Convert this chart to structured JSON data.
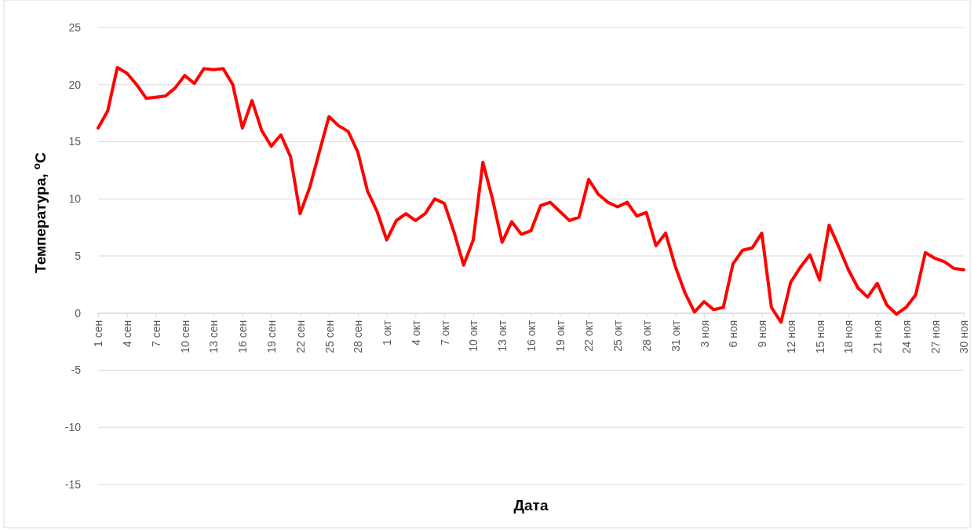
{
  "chart_data": {
    "type": "line",
    "xlabel": "Дата",
    "ylabel": "Температура, $^{o}$C",
    "categories": [
      "1 сен",
      null,
      null,
      "4 сен",
      null,
      null,
      "7 сен",
      null,
      null,
      "10 сен",
      null,
      null,
      "13 сен",
      null,
      null,
      "16 сен",
      null,
      null,
      "19 сен",
      null,
      null,
      "22 сен",
      null,
      null,
      "25 сен",
      null,
      null,
      "28 сен",
      null,
      null,
      "1 окт",
      null,
      null,
      "4 окт",
      null,
      null,
      "7 окт",
      null,
      null,
      "10 окт",
      null,
      null,
      "13 окт",
      null,
      null,
      "16 окт",
      null,
      null,
      "19 окт",
      null,
      null,
      "22 окт",
      null,
      null,
      "25 окт",
      null,
      null,
      "28 окт",
      null,
      null,
      "31 окт",
      null,
      null,
      "3 ноя",
      null,
      null,
      "6 ноя",
      null,
      null,
      "9 ноя",
      null,
      null,
      "12 ноя",
      null,
      null,
      "15 ноя",
      null,
      null,
      "18 ноя",
      null,
      null,
      "21 ноя",
      null,
      null,
      "24 ноя",
      null,
      null,
      "27 ноя",
      null,
      null,
      "30 ноя"
    ],
    "series": [
      {
        "color": "#ff0000",
        "values": [
          16.2,
          17.7,
          21.5,
          21.0,
          20.0,
          18.8,
          18.9,
          19.0,
          19.7,
          20.8,
          20.1,
          21.4,
          21.3,
          21.4,
          20.0,
          16.2,
          18.6,
          16.0,
          14.6,
          15.6,
          13.7,
          8.7,
          11.0,
          14.1,
          17.2,
          16.4,
          15.9,
          14.1,
          10.7,
          8.9,
          6.4,
          8.1,
          8.7,
          8.1,
          8.7,
          10.0,
          9.6,
          7.1,
          4.2,
          6.4,
          13.2,
          10.0,
          6.2,
          8.0,
          6.9,
          7.2,
          9.4,
          9.7,
          8.9,
          8.1,
          8.4,
          11.7,
          10.4,
          9.7,
          9.3,
          9.7,
          8.5,
          8.8,
          5.9,
          7.0,
          4.1,
          1.8,
          0.1,
          1.0,
          0.3,
          0.5,
          4.3,
          5.5,
          5.7,
          7.0,
          0.5,
          -0.8,
          2.7,
          4.0,
          5.1,
          2.9,
          7.7,
          5.8,
          3.8,
          2.2,
          1.4,
          2.6,
          0.7,
          -0.1,
          0.5,
          1.6,
          5.3,
          4.8,
          4.5,
          3.9,
          3.8
        ]
      }
    ],
    "ylim": [
      -15,
      25
    ],
    "yticks": [
      -15,
      -10,
      -5,
      0,
      5,
      10,
      15,
      20,
      25
    ],
    "grid": "y",
    "marker": "none",
    "line_style": "solid"
  }
}
